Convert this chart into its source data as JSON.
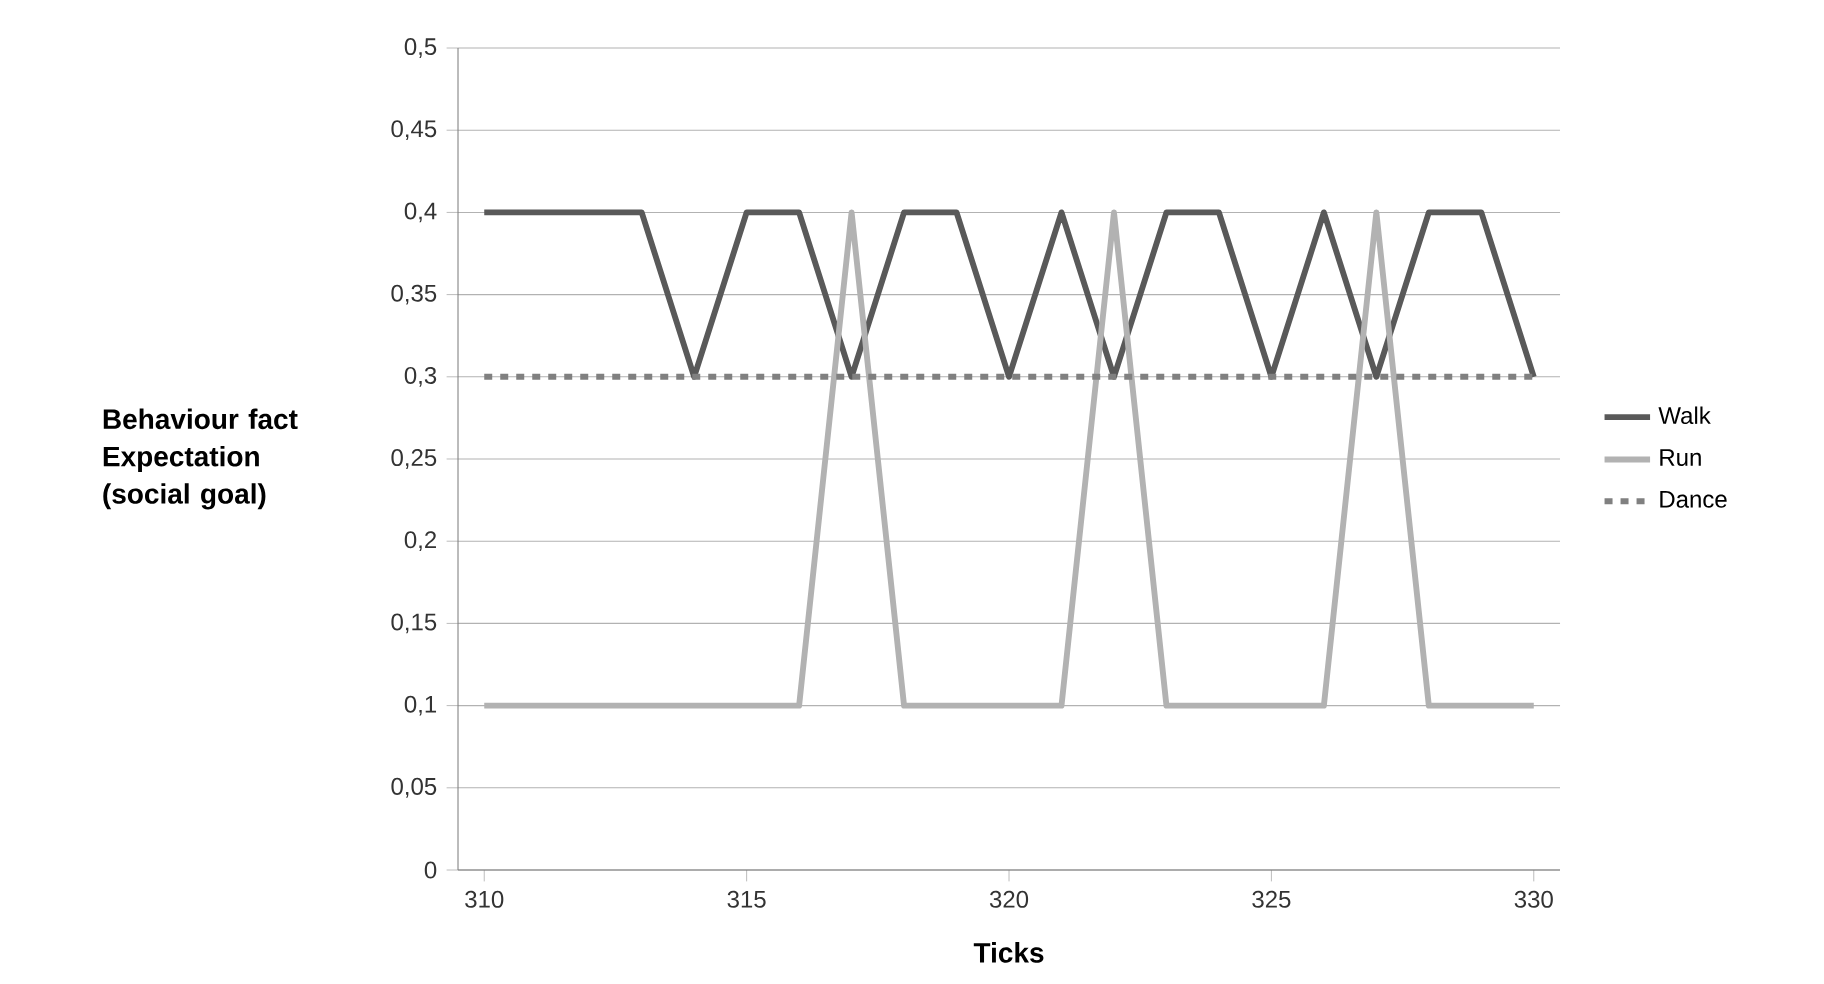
{
  "chart_data": {
    "type": "line",
    "xlabel": "Ticks",
    "ylabel": "Behaviour fact Expectation (social goal)",
    "x": [
      310,
      311,
      312,
      313,
      314,
      315,
      316,
      317,
      318,
      319,
      320,
      321,
      322,
      323,
      324,
      325,
      326,
      327,
      328,
      329,
      330
    ],
    "series": [
      {
        "name": "Walk",
        "color": "#595959",
        "values": [
          0.4,
          0.4,
          0.4,
          0.4,
          0.3,
          0.4,
          0.4,
          0.3,
          0.4,
          0.4,
          0.3,
          0.4,
          0.3,
          0.4,
          0.4,
          0.3,
          0.4,
          0.3,
          0.4,
          0.4,
          0.3
        ]
      },
      {
        "name": "Run",
        "color": "#b2b2b2",
        "values": [
          0.1,
          0.1,
          0.1,
          0.1,
          0.1,
          0.1,
          0.1,
          0.4,
          0.1,
          0.1,
          0.1,
          0.1,
          0.4,
          0.1,
          0.1,
          0.1,
          0.1,
          0.4,
          0.1,
          0.1,
          0.1
        ]
      },
      {
        "name": "Dance",
        "color": "#808080",
        "line_style": "dashed",
        "values": [
          0.3,
          0.3,
          0.3,
          0.3,
          0.3,
          0.3,
          0.3,
          0.3,
          0.3,
          0.3,
          0.3,
          0.3,
          0.3,
          0.3,
          0.3,
          0.3,
          0.3,
          0.3,
          0.3,
          0.3,
          0.3
        ]
      }
    ],
    "xlim": [
      309.5,
      330.5
    ],
    "xticks": [
      310,
      315,
      320,
      325,
      330
    ],
    "ylim": [
      0,
      0.5
    ],
    "yticks": [
      0,
      {
        "value": 0.05,
        "label": "0,05"
      },
      {
        "value": 0.1,
        "label": "0,1"
      },
      {
        "value": 0.15,
        "label": "0,15"
      },
      {
        "value": 0.2,
        "label": "0,2"
      },
      {
        "value": 0.25,
        "label": "0,25"
      },
      {
        "value": 0.3,
        "label": "0,3"
      },
      {
        "value": 0.35,
        "label": "0,35"
      },
      {
        "value": 0.4,
        "label": "0,4"
      },
      {
        "value": 0.45,
        "label": "0,45"
      },
      {
        "value": 0.5,
        "label": "0,5"
      }
    ],
    "grid": "y",
    "legend": "right",
    "marker": "none",
    "line_style": "solid"
  }
}
